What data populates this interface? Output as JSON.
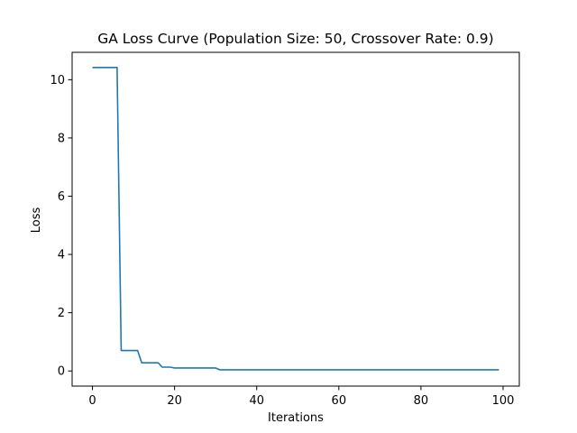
{
  "chart_data": {
    "type": "line",
    "title": "GA Loss Curve (Population Size: 50, Crossover Rate: 0.9)",
    "xlabel": "Iterations",
    "ylabel": "Loss",
    "xlim": [
      -4.95,
      103.95
    ],
    "ylim": [
      -0.52,
      10.94
    ],
    "xticks": [
      0,
      20,
      40,
      60,
      80,
      100
    ],
    "yticks": [
      0,
      2,
      4,
      6,
      8,
      10
    ],
    "xtick_labels": [
      "0",
      "20",
      "40",
      "60",
      "80",
      "100"
    ],
    "ytick_labels": [
      "0",
      "2",
      "4",
      "6",
      "8",
      "10"
    ],
    "grid": false,
    "series": [
      {
        "color": "#1f77b4",
        "x": [
          0,
          6,
          7,
          11,
          12,
          16,
          17,
          19,
          20,
          30,
          31,
          99
        ],
        "y": [
          10.42,
          10.42,
          0.7,
          0.7,
          0.28,
          0.28,
          0.13,
          0.13,
          0.1,
          0.1,
          0.04,
          0.04
        ]
      }
    ]
  }
}
